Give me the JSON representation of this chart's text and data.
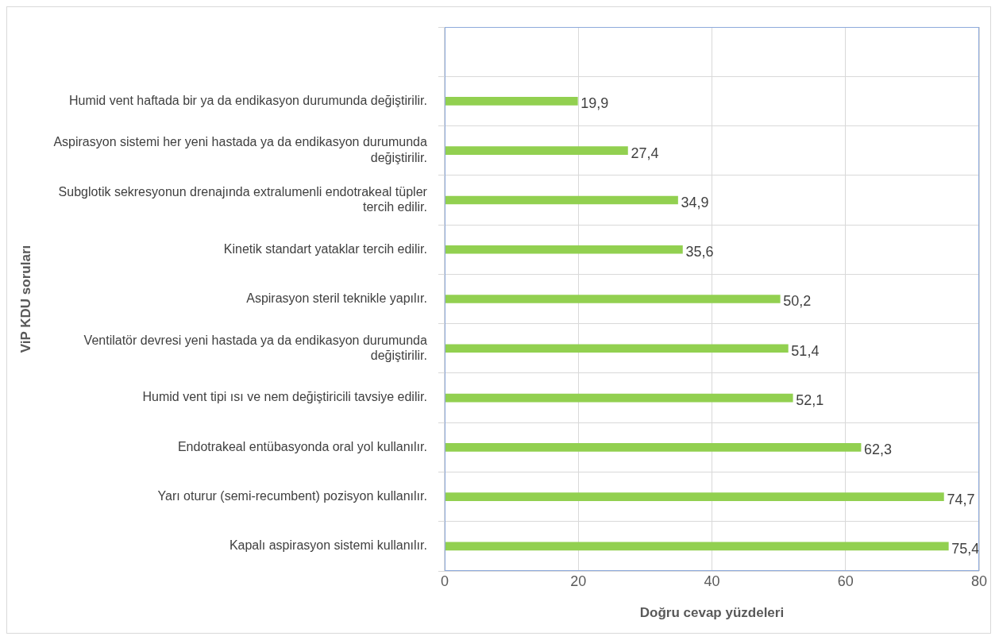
{
  "chart_data": {
    "type": "bar",
    "orientation": "horizontal",
    "xlabel": "Doğru cevap yüzdeleri",
    "ylabel": "ViP KDU soruları",
    "categories": [
      null,
      "Humid vent haftada bir ya da endikasyon durumunda değiştirilir.",
      "Aspirasyon sistemi her yeni hastada ya da endikasyon durumunda değiştirilir.",
      "Subglotik sekresyonun drenajında extralumenli endotrakeal tüpler tercih edilir.",
      "Kinetik standart yataklar tercih edilir.",
      "Aspirasyon steril teknikle yapılır.",
      "Ventilatör devresi yeni hastada ya da endikasyon durumunda değiştirilir.",
      "Humid vent tipi ısı ve nem değiştiricili tavsiye edilir.",
      "Endotrakeal entübasyonda oral yol kullanılır.",
      "Yarı oturur (semi-recumbent) pozisyon kullanılır.",
      "Kapalı aspirasyon sistemi kullanılır."
    ],
    "values": [
      null,
      19.9,
      27.4,
      34.9,
      35.6,
      50.2,
      51.4,
      52.1,
      62.3,
      74.7,
      75.4
    ],
    "value_labels": [
      null,
      "19,9",
      "27,4",
      "34,9",
      "35,6",
      "50,2",
      "51,4",
      "52,1",
      "62,3",
      "74,7",
      "75,4"
    ],
    "color": "#92d050",
    "xlim": [
      0,
      80
    ],
    "xticks": [
      0,
      20,
      40,
      60,
      80
    ],
    "grid": true,
    "legend": false
  }
}
